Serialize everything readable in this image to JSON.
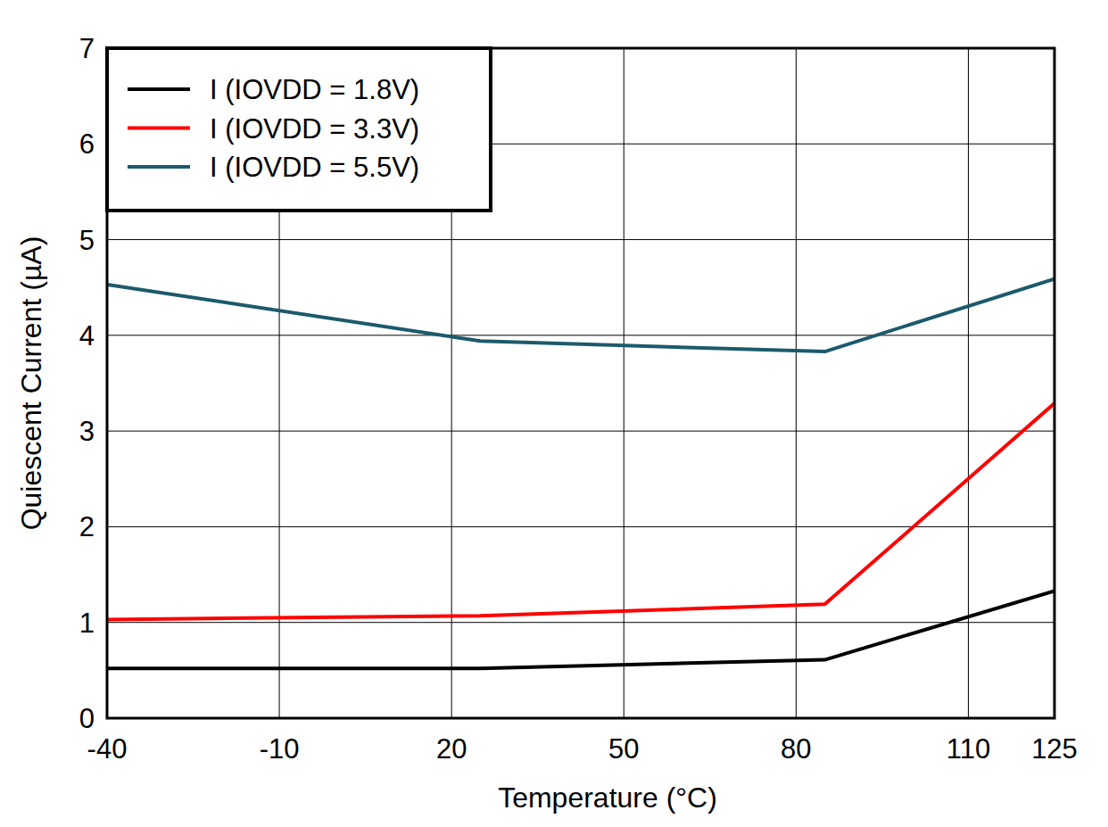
{
  "chart_data": {
    "type": "line",
    "x_label": "Temperature (°C)",
    "y_label": "Quiescent Current (µA)",
    "x": [
      -40,
      25,
      85,
      125
    ],
    "series": [
      {
        "name": "I (IOVDD = 1.8V)",
        "color": "#000000",
        "values": [
          0.52,
          0.52,
          0.61,
          1.33
        ]
      },
      {
        "name": "I (IOVDD = 3.3V)",
        "color": "#ff0000",
        "values": [
          1.03,
          1.07,
          1.19,
          3.29
        ]
      },
      {
        "name": "I (IOVDD = 5.5V)",
        "color": "#1b5a6b",
        "values": [
          4.53,
          3.94,
          3.83,
          4.59
        ]
      }
    ],
    "xlim": [
      -40,
      125
    ],
    "xticks": [
      -40,
      -10,
      20,
      50,
      80,
      110,
      125
    ],
    "ylim": [
      0,
      7
    ],
    "yticks": [
      0,
      1,
      2,
      3,
      4,
      5,
      6,
      7
    ],
    "grid": true,
    "legend": "upper left"
  }
}
